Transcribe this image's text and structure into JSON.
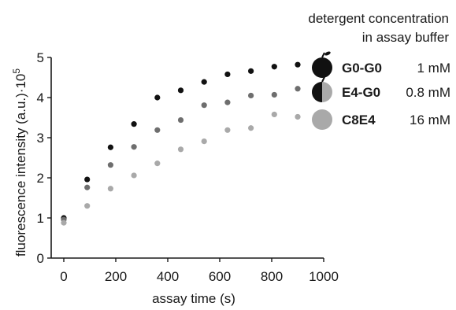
{
  "chart_data": {
    "type": "scatter",
    "xlabel": "assay time (s)",
    "ylabel": "fluorescence intensity (a.u.)·10",
    "ylabel_exponent": "5",
    "xlim": [
      0,
      1000
    ],
    "ylim": [
      0,
      5
    ],
    "x_ticks": [
      "0",
      "200",
      "400",
      "600",
      "800",
      "1000"
    ],
    "y_ticks": [
      "0",
      "1",
      "2",
      "3",
      "4",
      "5"
    ],
    "legend_header": [
      "detergent concentration",
      "in assay buffer"
    ],
    "legend_position": "top-right",
    "grid": false,
    "series": [
      {
        "name": "G0-G0",
        "concentration": "1 mM",
        "color": "#111111",
        "icon": "apple-black-icon",
        "x": [
          0,
          90,
          180,
          270,
          360,
          450,
          540,
          630,
          720,
          810,
          900
        ],
        "y": [
          1.0,
          1.96,
          2.76,
          3.34,
          4.0,
          4.18,
          4.39,
          4.58,
          4.66,
          4.77,
          4.82
        ]
      },
      {
        "name": "E4-G0",
        "concentration": "0.8 mM",
        "color": "#6e6e6e",
        "icon": "half-black-gray-circle-icon",
        "x": [
          0,
          90,
          180,
          270,
          360,
          450,
          540,
          630,
          720,
          810,
          900
        ],
        "y": [
          0.96,
          1.76,
          2.32,
          2.77,
          3.19,
          3.44,
          3.81,
          3.88,
          4.05,
          4.07,
          4.22
        ]
      },
      {
        "name": "C8E4",
        "concentration": "16 mM",
        "color": "#a9a9a9",
        "icon": "gray-circle-icon",
        "x": [
          0,
          90,
          180,
          270,
          360,
          450,
          540,
          630,
          720,
          810,
          900
        ],
        "y": [
          0.88,
          1.3,
          1.73,
          2.06,
          2.36,
          2.71,
          2.91,
          3.19,
          3.24,
          3.58,
          3.52
        ]
      }
    ]
  }
}
